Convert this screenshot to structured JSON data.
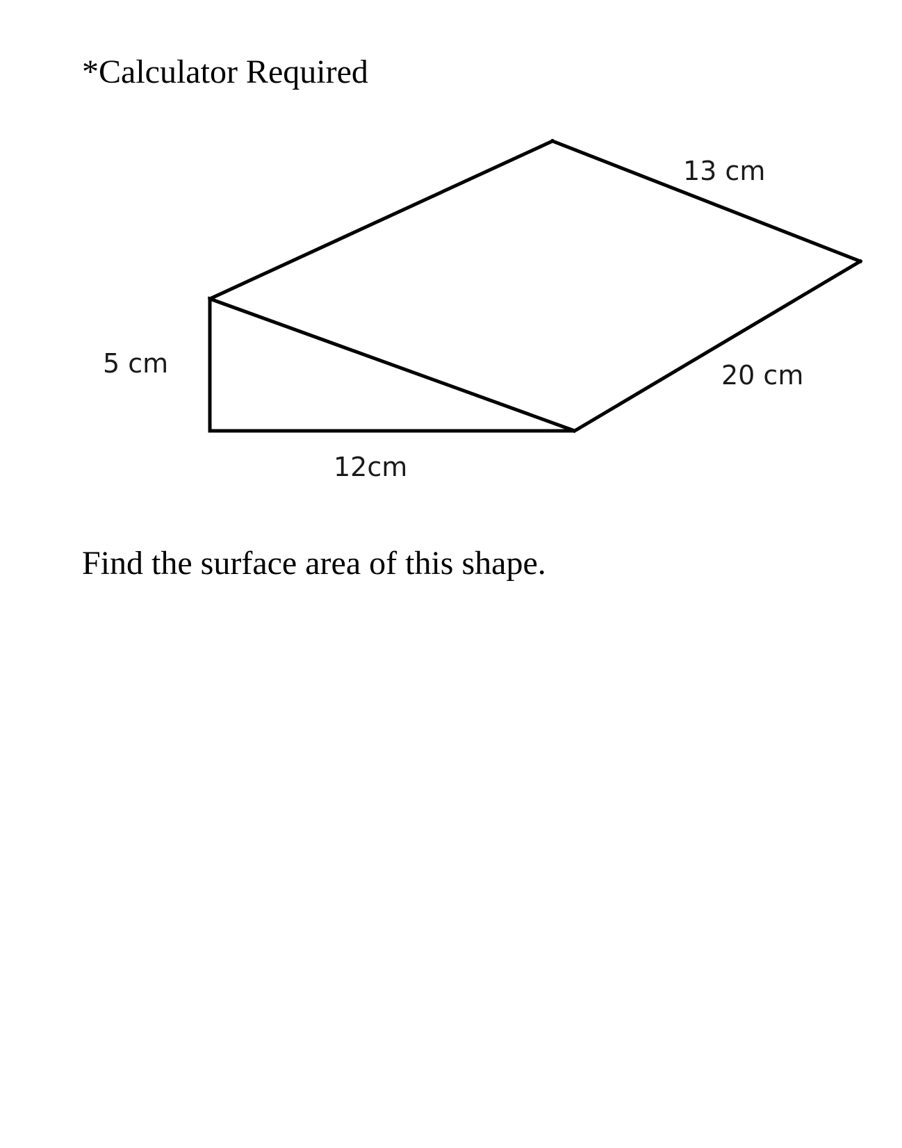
{
  "header": {
    "note": "*Calculator Required"
  },
  "figure": {
    "labels": {
      "height": "5 cm",
      "base": "12cm",
      "slant": "13 cm",
      "length": "20 cm"
    },
    "stroke_color": "#000000"
  },
  "question": {
    "text": "Find the surface area of this shape."
  }
}
